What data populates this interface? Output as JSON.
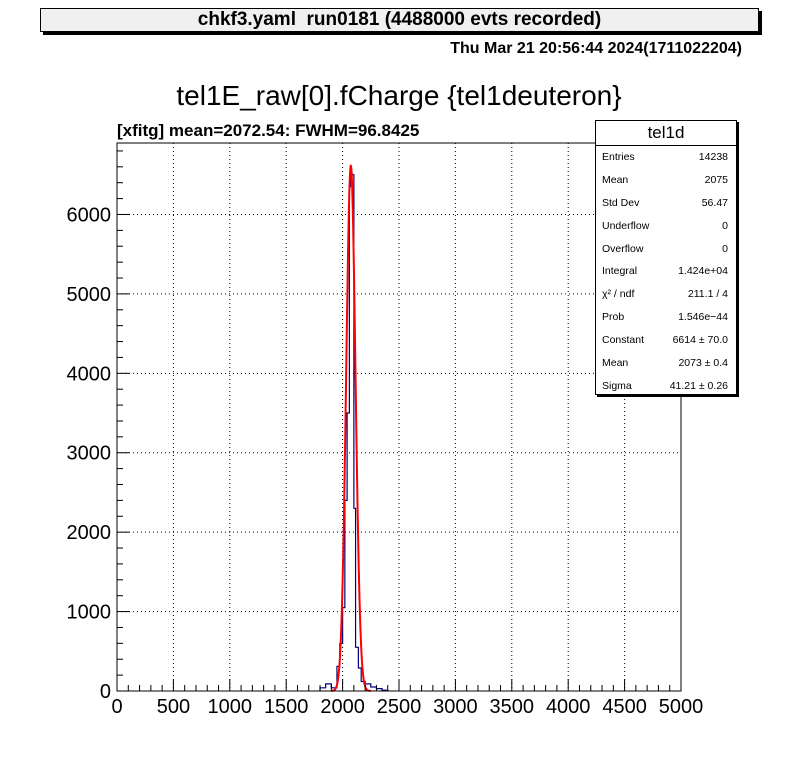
{
  "header": {
    "title": "chkf3.yaml  run0181 (4488000 evts recorded)",
    "timestamp": "Thu Mar 21 20:56:44 2024(1711022204)"
  },
  "histogram": {
    "title": "tel1E_raw[0].fCharge {tel1deuteron}",
    "fit_label": "[xfitg] mean=2072.54: FWHM=96.8425"
  },
  "stats": {
    "name": "tel1d",
    "rows": [
      {
        "label": "Entries",
        "value": "14238"
      },
      {
        "label": "Mean",
        "value": "2075"
      },
      {
        "label": "Std Dev",
        "value": "56.47"
      },
      {
        "label": "Underflow",
        "value": "0"
      },
      {
        "label": "Overflow",
        "value": "0"
      },
      {
        "label": "Integral",
        "value": "1.424e+04"
      },
      {
        "label": "χ² / ndf",
        "value": "211.1 / 4"
      },
      {
        "label": "Prob",
        "value": "1.546e−44"
      },
      {
        "label": "Constant",
        "value": "6614 ± 70.0"
      },
      {
        "label": "Mean",
        "value": "2073 ± 0.4"
      },
      {
        "label": "Sigma",
        "value": "41.21 ± 0.26"
      }
    ]
  },
  "chart_data": {
    "type": "histogram",
    "xlim": [
      0,
      5000
    ],
    "ylim": [
      0,
      6900
    ],
    "x_ticks": [
      0,
      500,
      1000,
      1500,
      2000,
      2500,
      3000,
      3500,
      4000,
      4500,
      5000
    ],
    "y_ticks": [
      0,
      1000,
      2000,
      3000,
      4000,
      5000,
      6000
    ],
    "grid": true,
    "bins": [
      {
        "x0": 1800,
        "x1": 1850,
        "y": 40
      },
      {
        "x0": 1850,
        "x1": 1900,
        "y": 90
      },
      {
        "x0": 1900,
        "x1": 1950,
        "y": 40
      },
      {
        "x0": 1950,
        "x1": 1975,
        "y": 310
      },
      {
        "x0": 1975,
        "x1": 2000,
        "y": 600
      },
      {
        "x0": 2000,
        "x1": 2020,
        "y": 1050
      },
      {
        "x0": 2020,
        "x1": 2040,
        "y": 2400
      },
      {
        "x0": 2040,
        "x1": 2060,
        "y": 3500
      },
      {
        "x0": 2060,
        "x1": 2070,
        "y": 6350
      },
      {
        "x0": 2070,
        "x1": 2085,
        "y": 6520
      },
      {
        "x0": 2085,
        "x1": 2100,
        "y": 6500
      },
      {
        "x0": 2100,
        "x1": 2115,
        "y": 2300
      },
      {
        "x0": 2115,
        "x1": 2140,
        "y": 550
      },
      {
        "x0": 2140,
        "x1": 2165,
        "y": 290
      },
      {
        "x0": 2165,
        "x1": 2200,
        "y": 120
      },
      {
        "x0": 2200,
        "x1": 2250,
        "y": 90
      },
      {
        "x0": 2250,
        "x1": 2300,
        "y": 50
      },
      {
        "x0": 2300,
        "x1": 2350,
        "y": 30
      },
      {
        "x0": 2350,
        "x1": 2400,
        "y": 10
      }
    ],
    "fit": {
      "type": "gaus",
      "constant": 6614,
      "mean": 2073,
      "sigma": 41.21,
      "range": [
        1900,
        2250
      ]
    },
    "colors": {
      "histogram": "#000080",
      "fit": "#ff0000"
    }
  }
}
